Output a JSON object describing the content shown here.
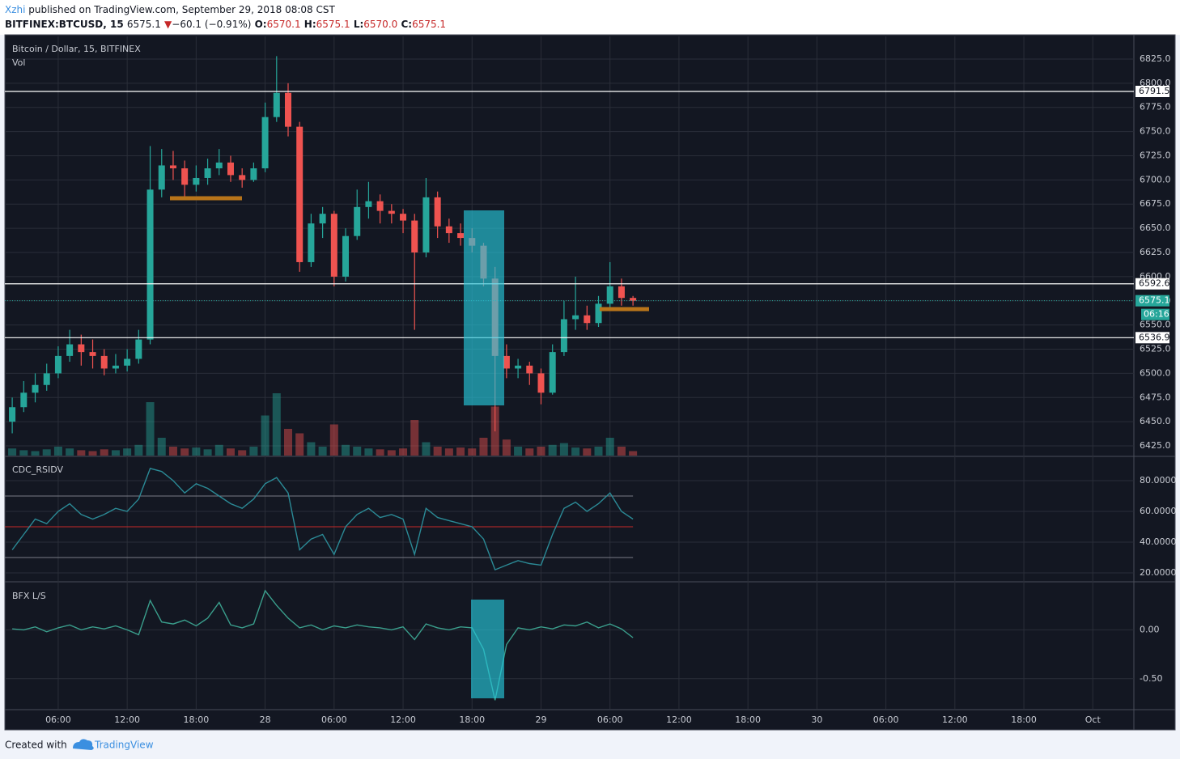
{
  "header": {
    "author": "Xzhi",
    "published": "published on TradingView.com, September 29, 2018 08:08 CST",
    "symbol": "BITFINEX:BTCUSD, 15",
    "price": "6575.1",
    "arrow": "▼",
    "change": "−60.1 (−0.91%)",
    "o_label": "O:",
    "o": "6570.1",
    "h_label": "H:",
    "h": "6575.1",
    "l_label": "L:",
    "l": "6570.0",
    "c_label": "C:",
    "c": "6575.1"
  },
  "chart_data": [
    {
      "type": "candlestick",
      "title": "Bitcoin / Dollar, 15, BITFINEX",
      "volume_label": "Vol",
      "x": [
        2,
        3,
        4,
        5,
        6,
        7,
        8,
        9,
        10,
        11,
        12,
        13,
        14,
        15,
        16,
        17,
        18,
        19,
        20,
        21,
        22,
        23,
        24,
        25,
        26,
        27,
        28,
        29,
        30,
        31,
        32,
        33,
        34,
        35,
        36,
        37,
        38,
        39,
        40,
        41,
        42,
        43,
        44,
        45,
        46,
        47,
        48,
        49,
        50,
        51,
        52,
        53,
        54,
        55,
        56
      ],
      "ohlc": [
        [
          6450,
          6475,
          6438,
          6465
        ],
        [
          6465,
          6492,
          6460,
          6480
        ],
        [
          6480,
          6500,
          6470,
          6488
        ],
        [
          6488,
          6510,
          6482,
          6500
        ],
        [
          6500,
          6528,
          6495,
          6518
        ],
        [
          6518,
          6545,
          6512,
          6530
        ],
        [
          6530,
          6540,
          6508,
          6522
        ],
        [
          6522,
          6535,
          6505,
          6518
        ],
        [
          6518,
          6525,
          6498,
          6505
        ],
        [
          6505,
          6520,
          6500,
          6508
        ],
        [
          6508,
          6525,
          6502,
          6515
        ],
        [
          6515,
          6545,
          6510,
          6535
        ],
        [
          6535,
          6735,
          6530,
          6690
        ],
        [
          6690,
          6732,
          6682,
          6715
        ],
        [
          6715,
          6730,
          6700,
          6712
        ],
        [
          6712,
          6720,
          6682,
          6695
        ],
        [
          6695,
          6715,
          6688,
          6702
        ],
        [
          6702,
          6722,
          6695,
          6712
        ],
        [
          6712,
          6732,
          6705,
          6718
        ],
        [
          6718,
          6725,
          6698,
          6705
        ],
        [
          6705,
          6712,
          6692,
          6700
        ],
        [
          6700,
          6718,
          6698,
          6712
        ],
        [
          6712,
          6780,
          6708,
          6765
        ],
        [
          6765,
          6828,
          6760,
          6790
        ],
        [
          6790,
          6800,
          6745,
          6755
        ],
        [
          6755,
          6760,
          6605,
          6615
        ],
        [
          6615,
          6665,
          6610,
          6655
        ],
        [
          6655,
          6672,
          6640,
          6665
        ],
        [
          6665,
          6668,
          6590,
          6600
        ],
        [
          6600,
          6650,
          6595,
          6642
        ],
        [
          6642,
          6690,
          6638,
          6672
        ],
        [
          6672,
          6698,
          6660,
          6678
        ],
        [
          6678,
          6685,
          6655,
          6668
        ],
        [
          6668,
          6675,
          6655,
          6665
        ],
        [
          6665,
          6670,
          6645,
          6658
        ],
        [
          6658,
          6665,
          6545,
          6625
        ],
        [
          6625,
          6702,
          6620,
          6682
        ],
        [
          6682,
          6688,
          6640,
          6652
        ],
        [
          6652,
          6660,
          6635,
          6645
        ],
        [
          6645,
          6655,
          6632,
          6640
        ],
        [
          6640,
          6650,
          6625,
          6632
        ],
        [
          6632,
          6635,
          6590,
          6598
        ],
        [
          6598,
          6610,
          6440,
          6518
        ],
        [
          6518,
          6530,
          6495,
          6505
        ],
        [
          6505,
          6515,
          6495,
          6508
        ],
        [
          6508,
          6512,
          6488,
          6500
        ],
        [
          6500,
          6505,
          6468,
          6480
        ],
        [
          6480,
          6530,
          6478,
          6522
        ],
        [
          6522,
          6575,
          6518,
          6556
        ],
        [
          6556,
          6600,
          6545,
          6560
        ],
        [
          6560,
          6570,
          6545,
          6552
        ],
        [
          6552,
          6580,
          6548,
          6572
        ],
        [
          6572,
          6615,
          6568,
          6590
        ],
        [
          6590,
          6598,
          6570,
          6578
        ],
        [
          6578,
          6580,
          6570,
          6575.1
        ]
      ],
      "volume": [
        8,
        6,
        5,
        7,
        10,
        8,
        6,
        5,
        7,
        6,
        8,
        12,
        60,
        20,
        10,
        8,
        9,
        7,
        12,
        8,
        6,
        10,
        45,
        70,
        30,
        25,
        15,
        10,
        35,
        12,
        10,
        8,
        7,
        6,
        8,
        40,
        15,
        10,
        8,
        9,
        8,
        20,
        55,
        18,
        10,
        8,
        10,
        12,
        14,
        9,
        8,
        10,
        20,
        10,
        5
      ],
      "vlim": [
        0,
        100
      ],
      "up_color": "#26a69a",
      "down_color": "#ef5350",
      "xlim": [
        1.5,
        99.5
      ],
      "xticks": [
        {
          "value": 6,
          "label": "06:00"
        },
        {
          "value": 12,
          "label": "12:00"
        },
        {
          "value": 18,
          "label": "18:00"
        },
        {
          "value": 24,
          "label": "28"
        },
        {
          "value": 30,
          "label": "06:00"
        },
        {
          "value": 36,
          "label": "12:00"
        },
        {
          "value": 42,
          "label": "18:00"
        },
        {
          "value": 48,
          "label": "29"
        },
        {
          "value": 54,
          "label": "06:00"
        },
        {
          "value": 60,
          "label": "12:00"
        },
        {
          "value": 66,
          "label": "18:00"
        },
        {
          "value": 72,
          "label": "30"
        },
        {
          "value": 78,
          "label": "06:00"
        },
        {
          "value": 84,
          "label": "12:00"
        },
        {
          "value": 90,
          "label": "18:00"
        },
        {
          "value": 96,
          "label": "Oct"
        }
      ],
      "ylim": [
        6415,
        6848.4
      ],
      "yticks": [
        {
          "value": 6425,
          "label": "6425.0"
        },
        {
          "value": 6450,
          "label": "6450.0"
        },
        {
          "value": 6475,
          "label": "6475.0"
        },
        {
          "value": 6500,
          "label": "6500.0"
        },
        {
          "value": 6525,
          "label": "6525.0"
        },
        {
          "value": 6550,
          "label": "6550.0"
        },
        {
          "value": 6575,
          "label": "6575.0"
        },
        {
          "value": 6600,
          "label": "6600.0"
        },
        {
          "value": 6625,
          "label": "6625.0"
        },
        {
          "value": 6650,
          "label": "6650.0"
        },
        {
          "value": 6675,
          "label": "6675.0"
        },
        {
          "value": 6700,
          "label": "6700.0"
        },
        {
          "value": 6725,
          "label": "6725.0"
        },
        {
          "value": 6750,
          "label": "6750.0"
        },
        {
          "value": 6775,
          "label": "6775.0"
        },
        {
          "value": 6800,
          "label": "6800.0"
        },
        {
          "value": 6825,
          "label": "6825.0"
        }
      ],
      "levels": [
        6791.5,
        6592.6,
        6536.9
      ],
      "last": 6575.1,
      "countdown": "06:16",
      "grid": true
    },
    {
      "type": "line",
      "title": "CDC_RSIDV",
      "x": [
        2,
        3,
        4,
        5,
        6,
        7,
        8,
        9,
        10,
        11,
        12,
        13,
        14,
        15,
        16,
        17,
        18,
        19,
        20,
        21,
        22,
        23,
        24,
        25,
        26,
        27,
        28,
        29,
        30,
        31,
        32,
        33,
        34,
        35,
        36,
        37,
        38,
        39,
        40,
        41,
        42,
        43,
        44,
        45,
        46,
        47,
        48,
        49,
        50,
        51,
        52,
        53,
        54,
        55,
        56
      ],
      "series": [
        {
          "color": "#2b8a96",
          "values": [
            35,
            45,
            55,
            52,
            60,
            65,
            58,
            55,
            58,
            62,
            60,
            68,
            88,
            86,
            80,
            72,
            78,
            75,
            70,
            65,
            62,
            68,
            78,
            82,
            72,
            35,
            42,
            45,
            32,
            50,
            58,
            62,
            56,
            58,
            55,
            32,
            62,
            56,
            54,
            52,
            50,
            42,
            22,
            25,
            28,
            26,
            25,
            45,
            62,
            66,
            60,
            65,
            72,
            60,
            55
          ]
        }
      ],
      "levels": [
        70,
        50,
        30
      ],
      "level_colors": [
        "#787b86",
        "#c62828",
        "#787b86"
      ],
      "xlim": [
        1.5,
        99.5
      ],
      "ylim": [
        14.7,
        95.3
      ],
      "yticks": [
        {
          "value": 80,
          "label": "80.0000"
        },
        {
          "value": 60,
          "label": "60.0000"
        },
        {
          "value": 40,
          "label": "40.0000"
        },
        {
          "value": 20,
          "label": "20.0000"
        }
      ],
      "grid": true
    },
    {
      "type": "line",
      "title": "BFX L/S",
      "x": [
        2,
        3,
        4,
        5,
        6,
        7,
        8,
        9,
        10,
        11,
        12,
        13,
        14,
        15,
        16,
        17,
        18,
        19,
        20,
        21,
        22,
        23,
        24,
        25,
        26,
        27,
        28,
        29,
        30,
        31,
        32,
        33,
        34,
        35,
        36,
        37,
        38,
        39,
        40,
        41,
        42,
        43,
        44,
        45,
        46,
        47,
        48,
        49,
        50,
        51,
        52,
        53,
        54,
        55,
        56
      ],
      "series": [
        {
          "color": "#3a9e8c",
          "values": [
            0.01,
            0.0,
            0.03,
            -0.02,
            0.02,
            0.05,
            0.0,
            0.03,
            0.01,
            0.04,
            0.0,
            -0.05,
            0.3,
            0.08,
            0.06,
            0.1,
            0.04,
            0.12,
            0.28,
            0.05,
            0.02,
            0.06,
            0.4,
            0.25,
            0.12,
            0.02,
            0.05,
            0.0,
            0.04,
            0.02,
            0.05,
            0.03,
            0.02,
            0.0,
            0.03,
            -0.1,
            0.06,
            0.02,
            0.0,
            0.03,
            0.02,
            -0.2,
            -0.72,
            -0.15,
            0.02,
            0.0,
            0.03,
            0.01,
            0.05,
            0.04,
            0.08,
            0.02,
            0.06,
            0.01,
            -0.08
          ]
        }
      ],
      "xlim": [
        1.5,
        99.5
      ],
      "ylim": [
        -0.808,
        0.483
      ],
      "yticks": [
        {
          "value": 0,
          "label": "0.00"
        },
        {
          "value": -0.5,
          "label": "-0.50"
        }
      ],
      "grid": true
    }
  ],
  "footer": {
    "created": "Created with",
    "brand": "TradingView"
  }
}
